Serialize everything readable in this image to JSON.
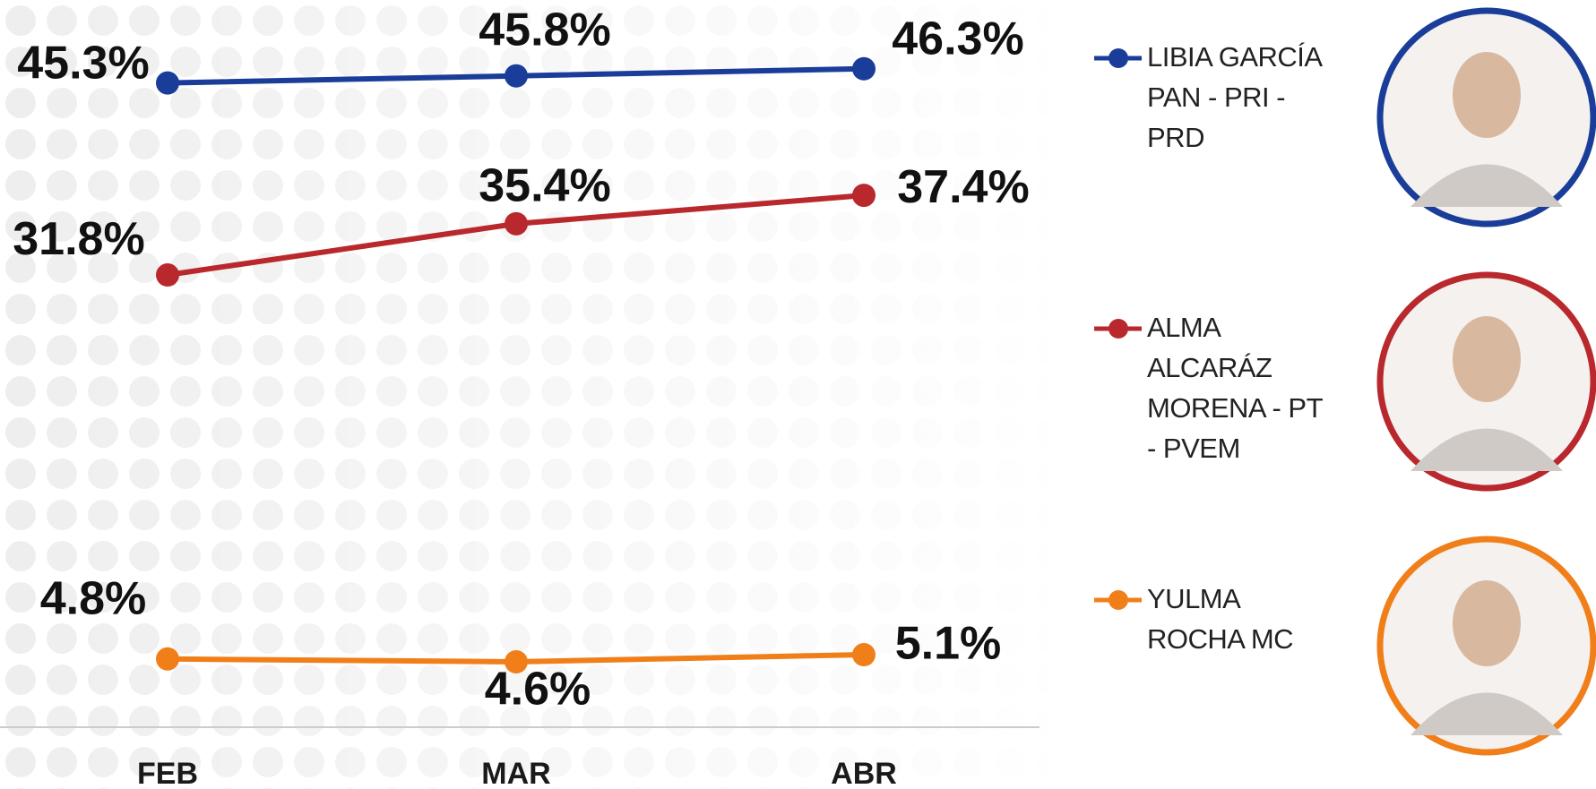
{
  "chart_data": {
    "type": "line",
    "categories": [
      "FEB",
      "MAR",
      "ABR"
    ],
    "ylim": [
      0,
      50
    ],
    "series": [
      {
        "name": "LIBIA GARCÍA PAN -  PRI - PRD",
        "color": "#1a3d99",
        "values": [
          45.3,
          45.8,
          46.3
        ],
        "value_labels": [
          "45.3%",
          "45.8%",
          "46.3%"
        ]
      },
      {
        "name": "ALMA ALCARÁZ MORENA - PT - PVEM",
        "color": "#b8282d",
        "values": [
          31.8,
          35.4,
          37.4
        ],
        "value_labels": [
          "31.8%",
          "35.4%",
          "37.4%"
        ]
      },
      {
        "name": "YULMA ROCHA MC",
        "color": "#f07f1a",
        "values": [
          4.8,
          4.6,
          5.1
        ],
        "value_labels": [
          "4.8%",
          "4.6%",
          "5.1%"
        ]
      }
    ]
  }
}
